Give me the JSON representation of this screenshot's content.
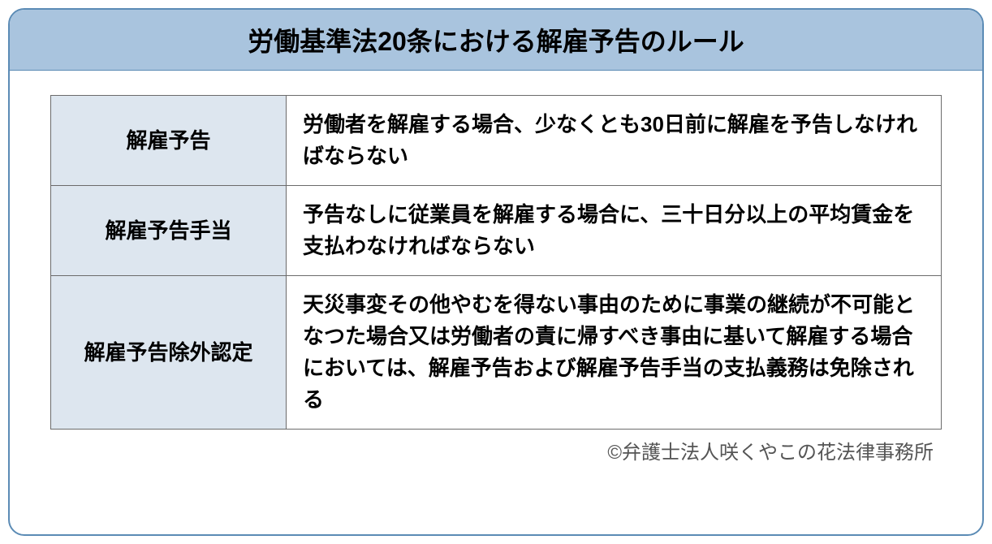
{
  "title": "労働基準法20条における解雇予告のルール",
  "table": {
    "rows": [
      {
        "label": "解雇予告",
        "desc": "労働者を解雇する場合、少なくとも30日前に解雇を予告しなければならない"
      },
      {
        "label": "解雇予告手当",
        "desc": "予告なしに従業員を解雇する場合に、三十日分以上の平均賃金を支払わなければならない"
      },
      {
        "label": "解雇予告除外認定",
        "desc": "天災事変その他やむを得ない事由のために事業の継続が不可能となつた場合又は労働者の責に帰すべき事由に基いて解雇する場合においては、解雇予告および解雇予告手当の支払義務は免除される"
      }
    ]
  },
  "copyright": "©弁護士法人咲くやこの花法律事務所",
  "colors": {
    "border": "#5b8bb5",
    "title_bg": "#a9c4de",
    "label_bg": "#dde6ef",
    "cell_border": "#6b6b6b",
    "text": "#000000",
    "copyright_text": "#555555"
  }
}
